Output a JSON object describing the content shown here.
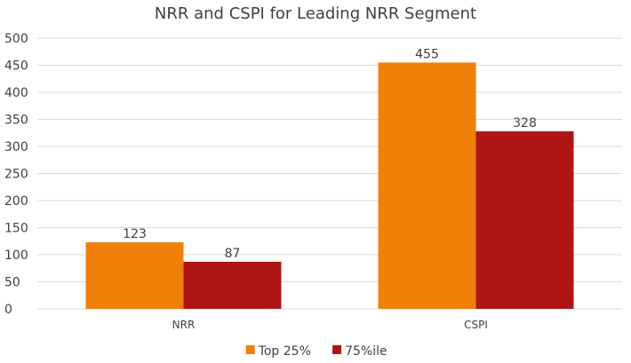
{
  "chart_data": {
    "type": "bar",
    "title": "NRR and CSPI for Leading NRR Segment",
    "categories": [
      "NRR",
      "CSPI"
    ],
    "series": [
      {
        "name": "Top 25%",
        "values": [
          123,
          455
        ],
        "color": "#f0800a"
      },
      {
        "name": "75%ile",
        "values": [
          87,
          328
        ],
        "color": "#b01516"
      }
    ],
    "xlabel": "",
    "ylabel": "",
    "ylim": [
      0,
      500
    ],
    "yticks": [
      0,
      50,
      100,
      150,
      200,
      250,
      300,
      350,
      400,
      450,
      500
    ],
    "grid": true,
    "legend": "bottom",
    "colors": {
      "grid": "#d9d9d9",
      "text": "#404040"
    }
  }
}
